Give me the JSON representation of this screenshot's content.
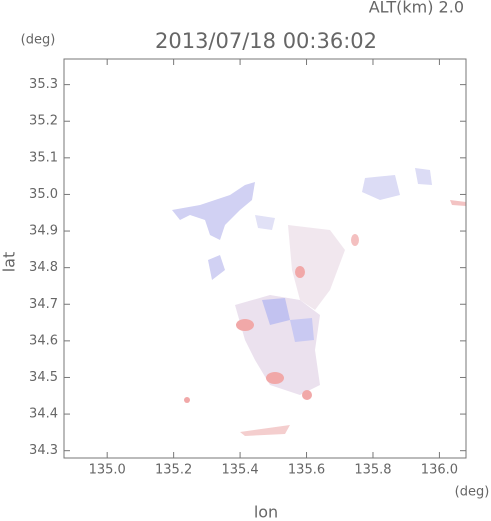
{
  "chart_data": {
    "type": "map",
    "title": "2013/07/18 00:36:02",
    "subtitle": "ALT(km) 2.0",
    "y_unit": "(deg)",
    "x_unit": "(deg)",
    "xlabel": "lon",
    "ylabel": "lat",
    "xlim": [
      134.87,
      136.08
    ],
    "ylim": [
      34.28,
      35.37
    ],
    "xticks": [
      {
        "value": 135,
        "label": "135.0"
      },
      135.2,
      135.4,
      135.6,
      135.8,
      {
        "value": 136,
        "label": "136.0"
      }
    ],
    "yticks": [
      34.3,
      34.4,
      34.5,
      34.6,
      34.7,
      34.8,
      34.9,
      {
        "value": 35,
        "label": "35.0"
      },
      35.1,
      35.2,
      35.3
    ]
  }
}
